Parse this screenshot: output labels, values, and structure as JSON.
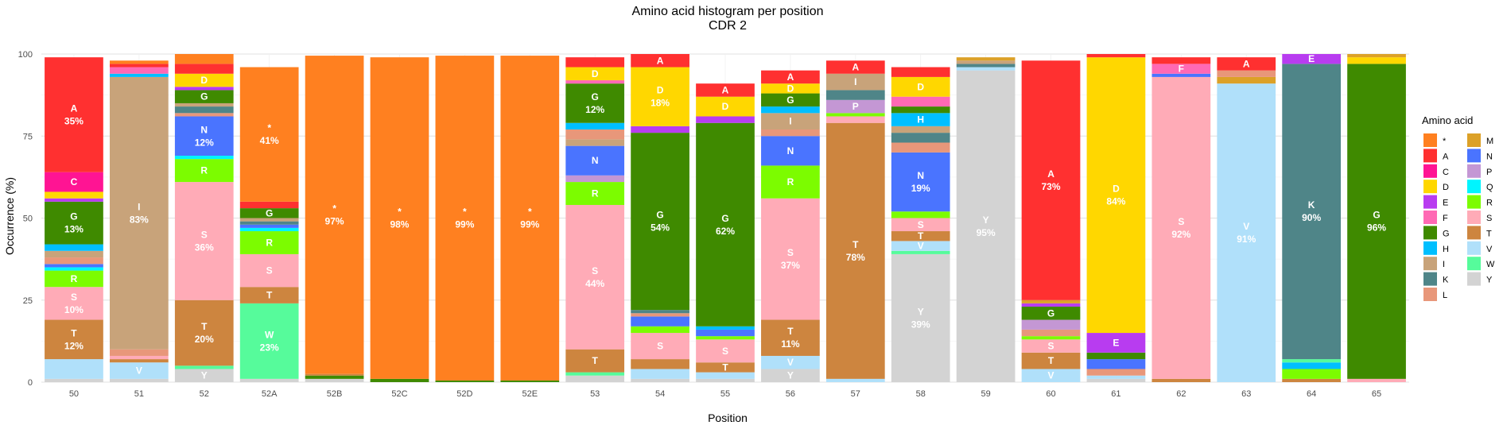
{
  "chart_data": {
    "type": "bar",
    "stacked": true,
    "title": "Amino acid histogram per position",
    "subtitle": "CDR 2",
    "xlabel": "Position",
    "ylabel": "Occurrence (%)",
    "ylim": [
      0,
      100
    ],
    "yticks": [
      0,
      25,
      50,
      75,
      100
    ],
    "grid": true,
    "legend_title": "Amino acid",
    "legend_position": "right",
    "categories": [
      "50",
      "51",
      "52",
      "52A",
      "52B",
      "52C",
      "52D",
      "52E",
      "53",
      "54",
      "55",
      "56",
      "57",
      "58",
      "59",
      "60",
      "61",
      "62",
      "63",
      "64",
      "65"
    ],
    "colors": {
      "*": "#ff8020",
      "A": "#ff3030",
      "C": "#ff1493",
      "D": "#ffd700",
      "E": "#b83cf0",
      "F": "#ff69b4",
      "G": "#3f8a00",
      "H": "#00bfff",
      "I": "#c8a37a",
      "K": "#4f8588",
      "L": "#e8977a",
      "M": "#dca128",
      "N": "#4a74ff",
      "P": "#c497d4",
      "Q": "#00f5ff",
      "R": "#7cfc00",
      "S": "#ffabb7",
      "T": "#cd853f",
      "V": "#b0e0fa",
      "W": "#56fb9b",
      "Y": "#d3d3d3"
    },
    "legend_col1": [
      "*",
      "A",
      "C",
      "D",
      "E",
      "F",
      "G",
      "H",
      "I",
      "K",
      "L"
    ],
    "legend_col2": [
      "M",
      "N",
      "P",
      "Q",
      "R",
      "S",
      "T",
      "V",
      "W",
      "Y"
    ],
    "stacks": [
      [
        [
          "Y",
          1
        ],
        [
          "V",
          6
        ],
        [
          "T",
          12,
          "T\n12%"
        ],
        [
          "S",
          10,
          "S\n10%"
        ],
        [
          "R",
          5,
          "R"
        ],
        [
          "Q",
          1
        ],
        [
          "N",
          1
        ],
        [
          "L",
          2
        ],
        [
          "I",
          2
        ],
        [
          "H",
          2
        ],
        [
          "G",
          13,
          "G\n13%"
        ],
        [
          "E",
          1
        ],
        [
          "D",
          2
        ],
        [
          "C",
          6,
          "C"
        ],
        [
          "A",
          35,
          "A\n35%"
        ]
      ],
      [
        [
          "Y",
          1
        ],
        [
          "V",
          5,
          "V"
        ],
        [
          "T",
          1
        ],
        [
          "S",
          1
        ],
        [
          "L",
          2
        ],
        [
          "I",
          83,
          "I\n83%"
        ],
        [
          "H",
          1
        ],
        [
          "F",
          2
        ],
        [
          "A",
          1
        ],
        [
          "*",
          1
        ]
      ],
      [
        [
          "Y",
          4,
          "Y"
        ],
        [
          "W",
          1
        ],
        [
          "T",
          20,
          "T\n20%"
        ],
        [
          "S",
          36,
          "S\n36%"
        ],
        [
          "R",
          7,
          "R"
        ],
        [
          "Q",
          1
        ],
        [
          "N",
          12,
          "N\n12%"
        ],
        [
          "L",
          1
        ],
        [
          "K",
          2
        ],
        [
          "I",
          1
        ],
        [
          "G",
          4,
          "G"
        ],
        [
          "E",
          1
        ],
        [
          "D",
          4,
          "D"
        ],
        [
          "A",
          3
        ],
        [
          "*",
          3
        ]
      ],
      [
        [
          "Y",
          1
        ],
        [
          "W",
          23,
          "W\n23%"
        ],
        [
          "T",
          5,
          "T"
        ],
        [
          "S",
          10,
          "S"
        ],
        [
          "R",
          7,
          "R"
        ],
        [
          "Q",
          1
        ],
        [
          "N",
          1
        ],
        [
          "K",
          1
        ],
        [
          "I",
          1
        ],
        [
          "G",
          3,
          "G"
        ],
        [
          "A",
          2
        ],
        [
          "*",
          41,
          "*\n41%"
        ]
      ],
      [
        [
          "Y",
          1
        ],
        [
          "G",
          1
        ],
        [
          "T",
          0.5
        ],
        [
          "*",
          97,
          "*\n97%"
        ]
      ],
      [
        [
          "G",
          1
        ],
        [
          "*",
          98,
          "*\n98%"
        ]
      ],
      [
        [
          "G",
          0.5
        ],
        [
          "*",
          99,
          "*\n99%"
        ]
      ],
      [
        [
          "G",
          0.5
        ],
        [
          "*",
          99,
          "*\n99%"
        ]
      ],
      [
        [
          "Y",
          2
        ],
        [
          "W",
          1
        ],
        [
          "T",
          7,
          "T"
        ],
        [
          "S",
          44,
          "S\n44%"
        ],
        [
          "R",
          7,
          "R"
        ],
        [
          "P",
          2
        ],
        [
          "N",
          9,
          "N"
        ],
        [
          "I",
          2
        ],
        [
          "L",
          3
        ],
        [
          "H",
          2
        ],
        [
          "G",
          12,
          "G\n12%"
        ],
        [
          "F",
          1
        ],
        [
          "D",
          4,
          "D"
        ],
        [
          "A",
          3
        ]
      ],
      [
        [
          "Y",
          1
        ],
        [
          "V",
          3
        ],
        [
          "T",
          3
        ],
        [
          "S",
          8,
          "S"
        ],
        [
          "R",
          2
        ],
        [
          "N",
          3
        ],
        [
          "L",
          1
        ],
        [
          "K",
          1
        ],
        [
          "G",
          54,
          "G\n54%"
        ],
        [
          "E",
          2
        ],
        [
          "D",
          18,
          "D\n18%"
        ],
        [
          "A",
          4,
          "A"
        ]
      ],
      [
        [
          "Y",
          1
        ],
        [
          "V",
          2
        ],
        [
          "T",
          3,
          "T"
        ],
        [
          "S",
          7,
          "S"
        ],
        [
          "R",
          1
        ],
        [
          "N",
          2
        ],
        [
          "H",
          1
        ],
        [
          "G",
          62,
          "G\n62%"
        ],
        [
          "E",
          2
        ],
        [
          "D",
          6,
          "D"
        ],
        [
          "A",
          4,
          "A"
        ]
      ],
      [
        [
          "Y",
          4,
          "Y"
        ],
        [
          "V",
          4,
          "V"
        ],
        [
          "T",
          11,
          "T\n11%"
        ],
        [
          "S",
          37,
          "S\n37%"
        ],
        [
          "R",
          10,
          "R"
        ],
        [
          "N",
          9,
          "N"
        ],
        [
          "L",
          2
        ],
        [
          "I",
          5,
          "I"
        ],
        [
          "H",
          2
        ],
        [
          "G",
          4,
          "G"
        ],
        [
          "D",
          3,
          "D"
        ],
        [
          "A",
          4,
          "A"
        ]
      ],
      [
        [
          "V",
          1
        ],
        [
          "T",
          78,
          "T\n78%"
        ],
        [
          "S",
          2
        ],
        [
          "R",
          1
        ],
        [
          "P",
          4,
          "P"
        ],
        [
          "K",
          3
        ],
        [
          "I",
          5,
          "I"
        ],
        [
          "A",
          4,
          "A"
        ]
      ],
      [
        [
          "Y",
          39,
          "Y\n39%"
        ],
        [
          "W",
          1
        ],
        [
          "V",
          3,
          "V"
        ],
        [
          "T",
          3,
          "T"
        ],
        [
          "S",
          4,
          "S"
        ],
        [
          "R",
          2
        ],
        [
          "N",
          18,
          "N\n19%"
        ],
        [
          "L",
          3
        ],
        [
          "K",
          3
        ],
        [
          "I",
          2
        ],
        [
          "H",
          4,
          "H"
        ],
        [
          "G",
          2
        ],
        [
          "F",
          3
        ],
        [
          "D",
          6,
          "D"
        ],
        [
          "A",
          3
        ]
      ],
      [
        [
          "Y",
          95,
          "Y\n95%"
        ],
        [
          "V",
          1
        ],
        [
          "K",
          1
        ],
        [
          "I",
          1
        ],
        [
          "M",
          1
        ]
      ],
      [
        [
          "V",
          4,
          "V"
        ],
        [
          "T",
          5,
          "T"
        ],
        [
          "S",
          4,
          "S"
        ],
        [
          "R",
          1
        ],
        [
          "L",
          2
        ],
        [
          "P",
          3
        ],
        [
          "G",
          4,
          "G"
        ],
        [
          "E",
          1
        ],
        [
          "M",
          1
        ],
        [
          "A",
          73,
          "A\n73%"
        ]
      ],
      [
        [
          "Y",
          1
        ],
        [
          "V",
          1
        ],
        [
          "L",
          2
        ],
        [
          "N",
          3
        ],
        [
          "G",
          2
        ],
        [
          "E",
          6,
          "E"
        ],
        [
          "D",
          84,
          "D\n84%"
        ],
        [
          "A",
          1
        ]
      ],
      [
        [
          "T",
          1
        ],
        [
          "S",
          92,
          "S\n92%"
        ],
        [
          "N",
          1
        ],
        [
          "F",
          3,
          "F"
        ],
        [
          "A",
          2
        ]
      ],
      [
        [
          "V",
          91,
          "V\n91%"
        ],
        [
          "M",
          2
        ],
        [
          "L",
          2
        ],
        [
          "A",
          4,
          "A"
        ]
      ],
      [
        [
          "T",
          1
        ],
        [
          "R",
          3
        ],
        [
          "H",
          2
        ],
        [
          "W",
          1
        ],
        [
          "K",
          90,
          "K\n90%"
        ],
        [
          "E",
          3,
          "E"
        ]
      ],
      [
        [
          "S",
          1
        ],
        [
          "G",
          96,
          "G\n96%"
        ],
        [
          "D",
          2
        ],
        [
          "M",
          1
        ]
      ]
    ]
  }
}
